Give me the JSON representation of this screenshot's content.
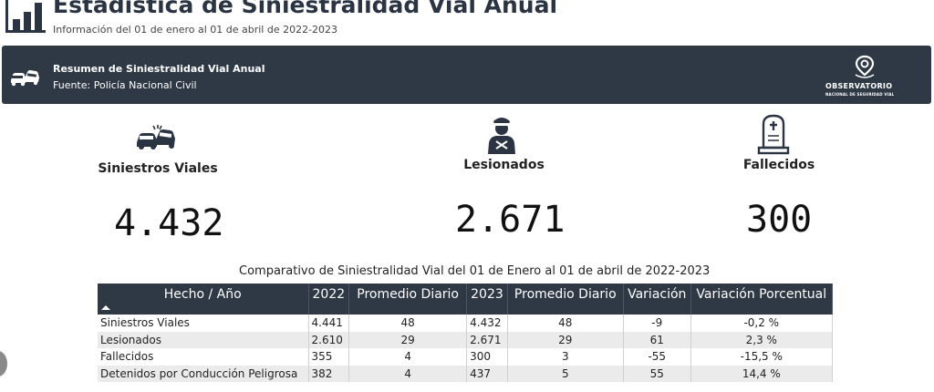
{
  "header": {
    "title": "Estadística de Siniestralidad Vial Anual",
    "subtitle": "Información del 01 de enero al 01 de abril de 2022-2023",
    "logo_icon": "bar-chart-icon"
  },
  "banner": {
    "title": "Resumen de Siniestralidad Vial Anual",
    "source": "Fuente: Policía Nacional Civil",
    "icon": "car-crash-icon",
    "org_name": "OBSERVATORIO",
    "org_sub": "NACIONAL DE SEGURIDAD VIAL",
    "org_icon": "location-pin-icon"
  },
  "kpis": {
    "siniestros": {
      "label": "Siniestros Viales",
      "value": "4.432",
      "icon": "car-crash-icon"
    },
    "lesionados": {
      "label": "Lesionados",
      "value": "2.671",
      "icon": "injured-person-icon"
    },
    "fallecidos": {
      "label": "Fallecidos",
      "value": "300",
      "icon": "tombstone-icon"
    }
  },
  "table": {
    "title": "Comparativo de Siniestralidad Vial del 01 de Enero al 01 de abril de 2022-2023",
    "headers": [
      "Hecho / Año",
      "2022",
      "Promedio Diario",
      "2023",
      "Promedio Diario",
      "Variación",
      "Variación Porcentual"
    ],
    "rows": [
      [
        "Siniestros Viales",
        "4.441",
        "48",
        "4.432",
        "48",
        "-9",
        "-0,2 %"
      ],
      [
        "Lesionados",
        "2.610",
        "29",
        "2.671",
        "29",
        "61",
        "2,3 %"
      ],
      [
        "Fallecidos",
        "355",
        "4",
        "300",
        "3",
        "-55",
        "-15,5 %"
      ],
      [
        "Detenidos por Conducción Peligrosa",
        "382",
        "4",
        "437",
        "5",
        "55",
        "14,4 %"
      ]
    ]
  },
  "colors": {
    "dark": "#2f3845",
    "alt_row": "#ebebeb"
  }
}
